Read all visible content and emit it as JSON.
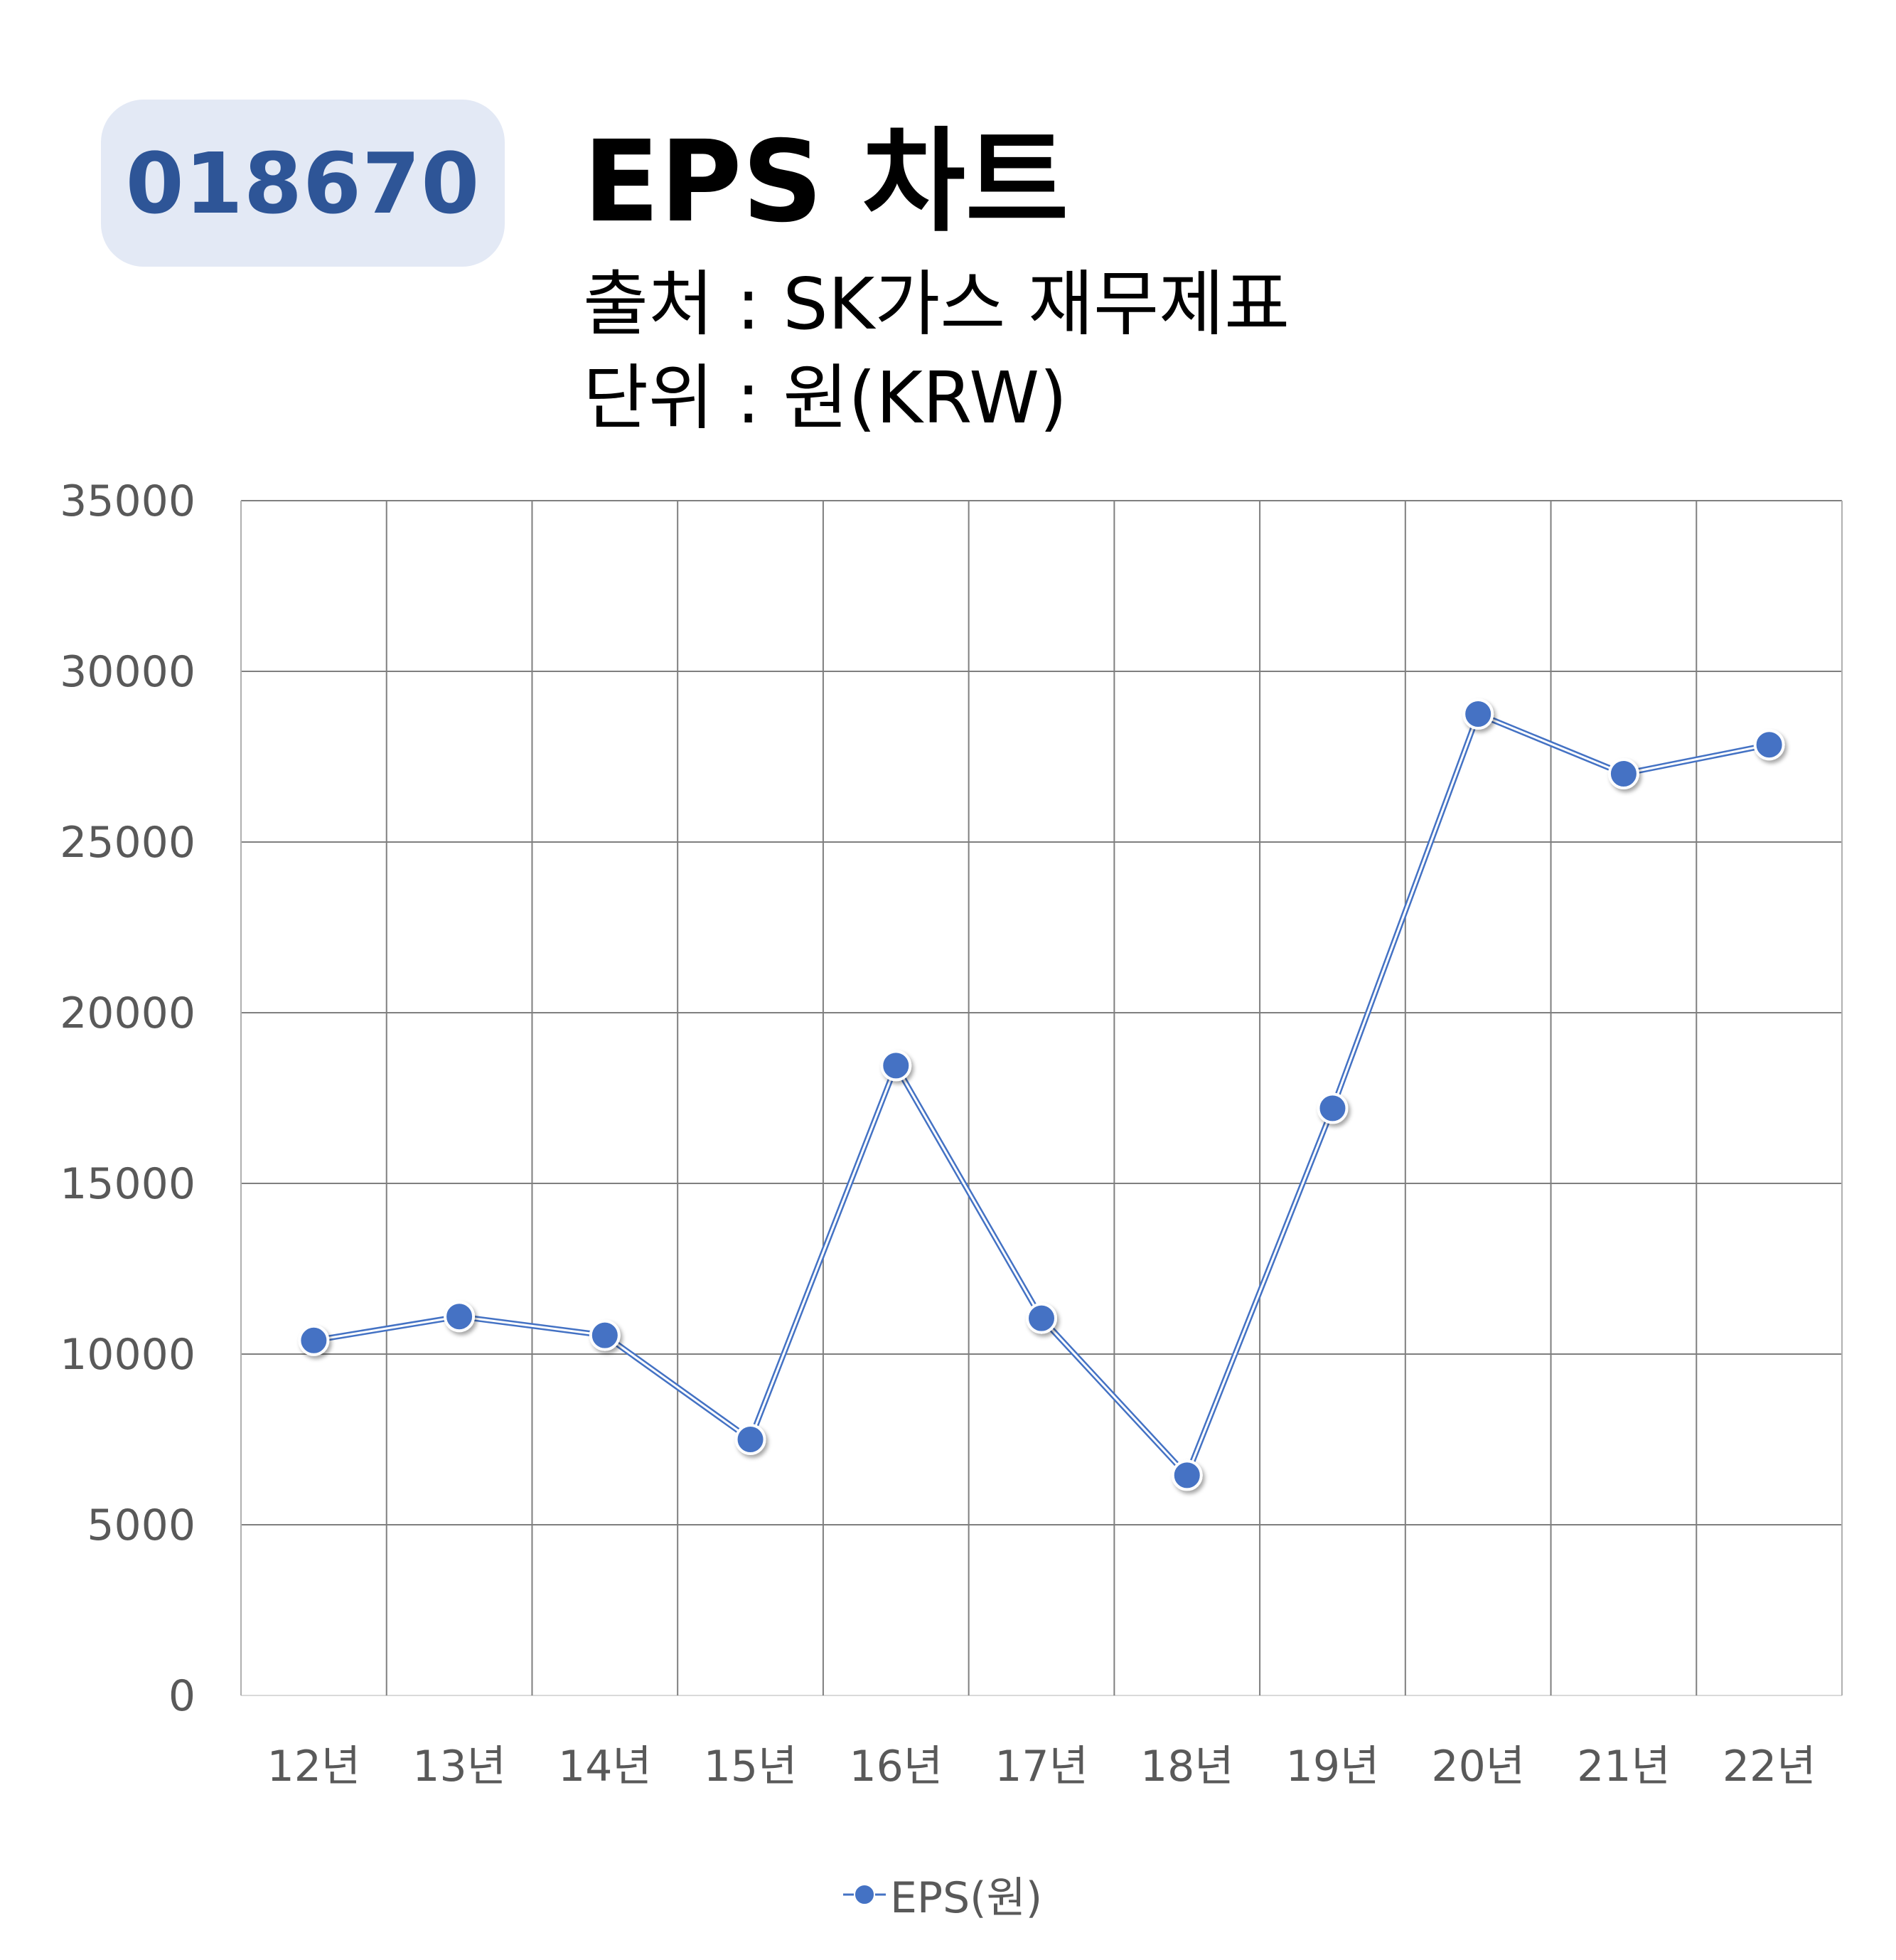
{
  "badge": {
    "code": "018670"
  },
  "header": {
    "title": "EPS 차트",
    "source": "출처 : SK가스 재무제표",
    "unit": "단위 : 원(KRW)"
  },
  "colors": {
    "series": "#4472c4",
    "badge_bg": "#e3e9f5",
    "badge_text": "#2e5597",
    "grid": "#7f7f7f"
  },
  "chart_data": {
    "type": "line",
    "title": "EPS 차트",
    "categories": [
      "12년",
      "13년",
      "14년",
      "15년",
      "16년",
      "17년",
      "18년",
      "19년",
      "20년",
      "21년",
      "22년"
    ],
    "series": [
      {
        "name": "EPS(원)",
        "values": [
          10400,
          11100,
          10550,
          7500,
          18450,
          11050,
          6450,
          17200,
          28750,
          27000,
          27850
        ]
      }
    ],
    "ylim": [
      0,
      35000
    ],
    "yticks": [
      0,
      5000,
      10000,
      15000,
      20000,
      25000,
      30000,
      35000
    ],
    "grid": true,
    "legend": "bottom-center",
    "xlabel": "",
    "ylabel": ""
  }
}
